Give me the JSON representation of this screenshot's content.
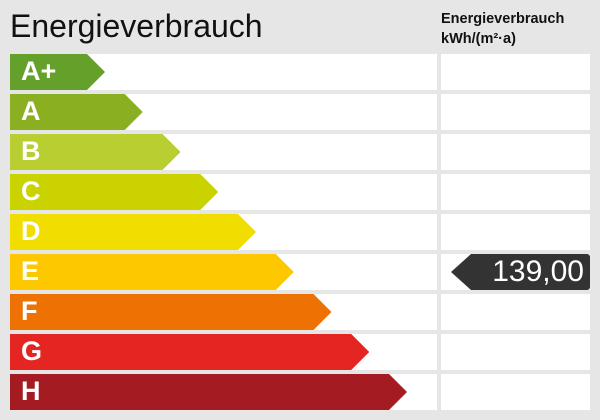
{
  "title": "Energieverbrauch",
  "column_title_line1": "Energieverbrauch",
  "column_title_line2": "kWh/(m²·a)",
  "chart_data": {
    "type": "bar",
    "categories": [
      "A+",
      "A",
      "B",
      "C",
      "D",
      "E",
      "F",
      "G",
      "H"
    ],
    "colors": [
      "#65a12a",
      "#8ab022",
      "#b9ce31",
      "#cad300",
      "#f1de00",
      "#fdc800",
      "#ed7203",
      "#e52521",
      "#a51b22"
    ],
    "value": "139,00",
    "value_class": "E",
    "marker_color": "#333333"
  }
}
